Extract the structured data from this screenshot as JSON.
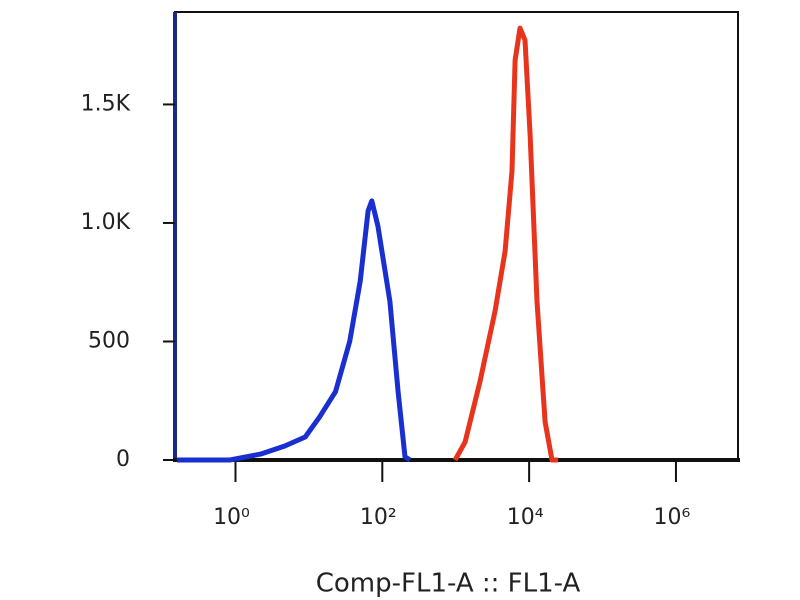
{
  "chart_data": {
    "type": "line",
    "x_label": "Comp-FL1-A :: FL1-A",
    "xscale": "log",
    "xlim": [
      0.15,
      7000000
    ],
    "xticks": [
      {
        "value": 1,
        "label": "10⁰"
      },
      {
        "value": 100,
        "label": "10²"
      },
      {
        "value": 10000,
        "label": "10⁴"
      },
      {
        "value": 1000000,
        "label": "10⁶"
      }
    ],
    "ylim": [
      0,
      1890
    ],
    "yticks": [
      0,
      500,
      {
        "value": 1000,
        "label": "1.0K"
      },
      {
        "value": 1500,
        "label": "1.5K"
      }
    ],
    "grid": false,
    "series": [
      {
        "color": "#1a2fd0",
        "x": [
          0.16,
          0.33,
          0.84,
          2.2,
          4.7,
          8.9,
          14,
          23,
          36,
          50,
          64,
          72,
          87,
          127,
          164,
          204,
          239
        ],
        "values": [
          0,
          0,
          0,
          25,
          59,
          97,
          182,
          288,
          500,
          754,
          1051,
          1093,
          987,
          669,
          288,
          13,
          0
        ]
      },
      {
        "color": "#e8341c",
        "x": [
          980,
          1340,
          2140,
          3430,
          4700,
          5850,
          6430,
          7520,
          8790,
          10300,
          12800,
          16500,
          20500,
          24800
        ],
        "values": [
          0,
          76,
          331,
          627,
          881,
          1220,
          1686,
          1822,
          1771,
          1373,
          669,
          161,
          0,
          0
        ]
      }
    ]
  }
}
